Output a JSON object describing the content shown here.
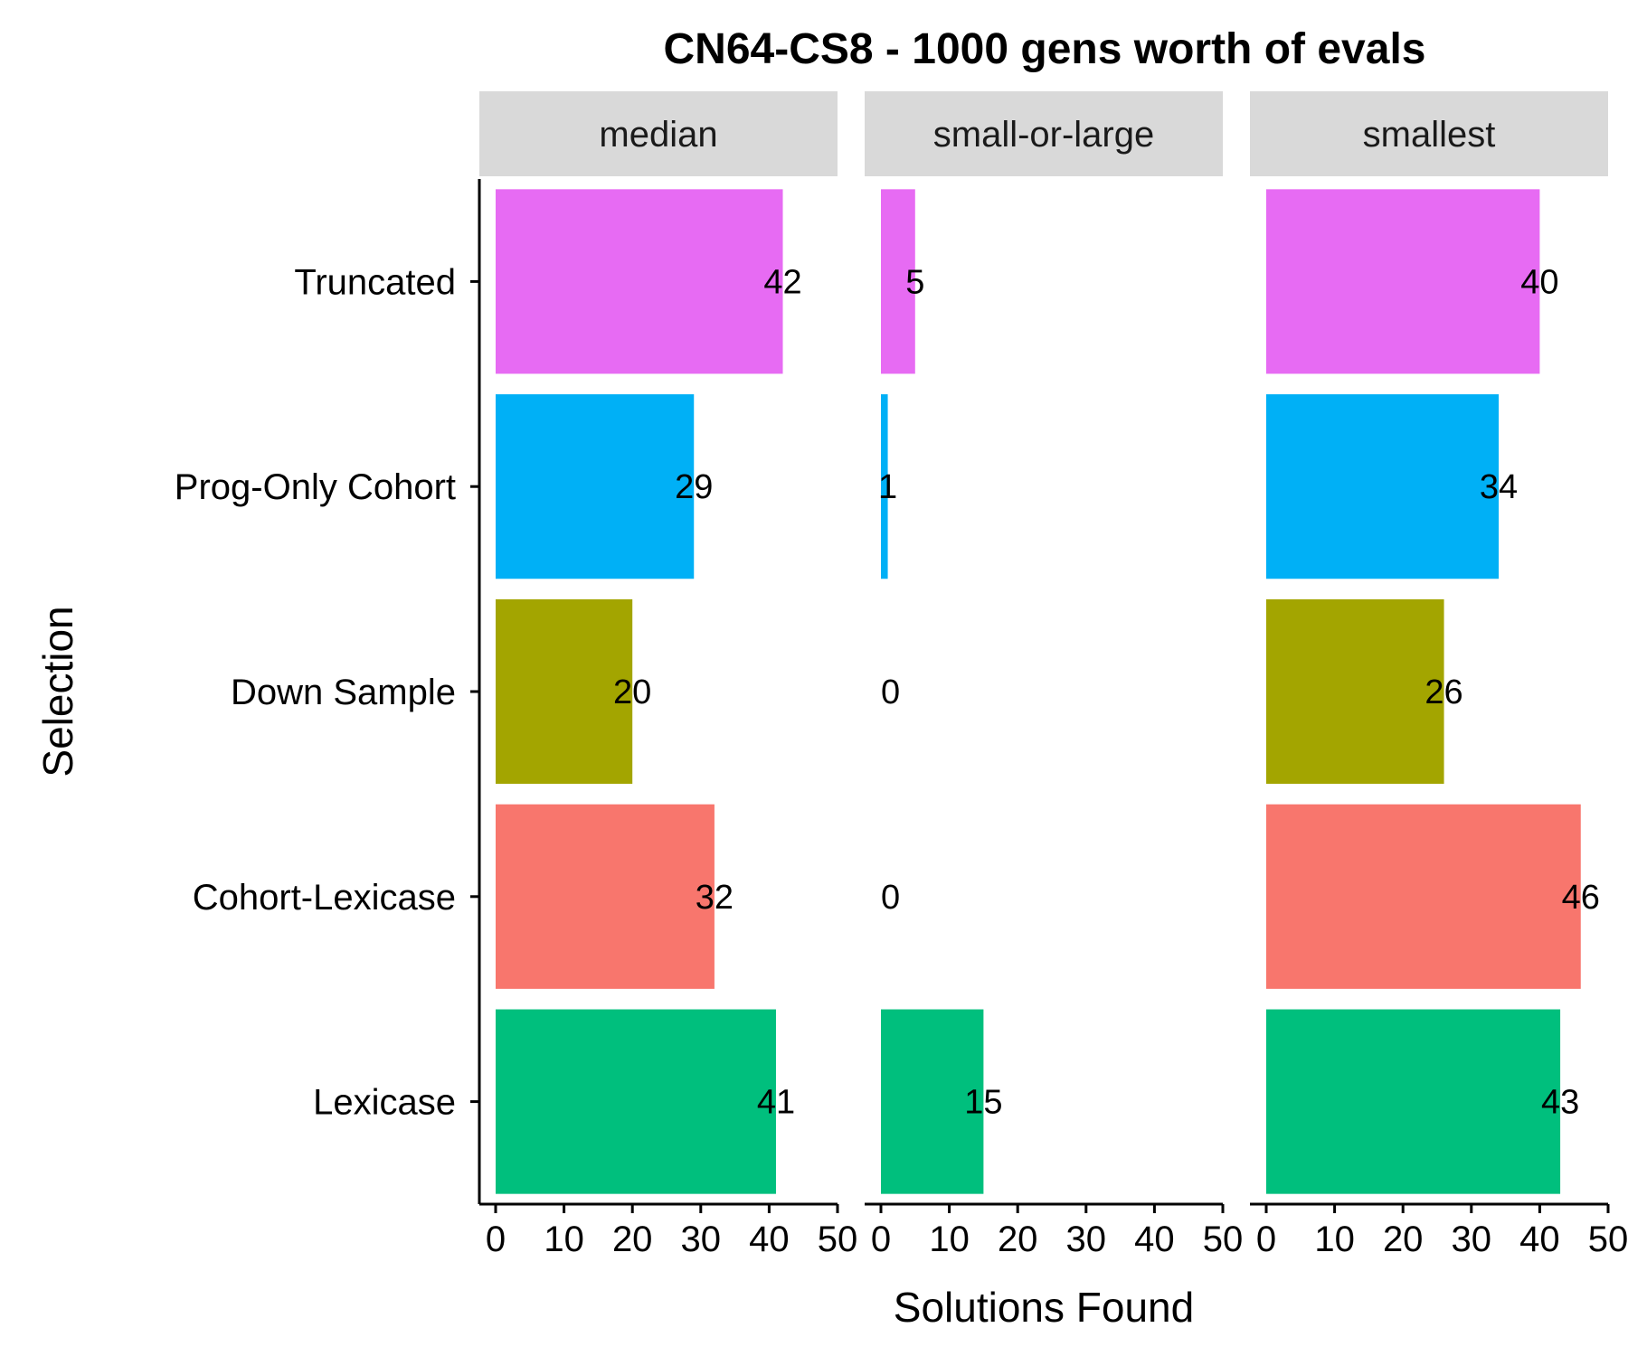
{
  "chart_data": {
    "type": "bar",
    "orientation": "horizontal",
    "title": "CN64-CS8  - 1000 gens worth of evals",
    "xlabel": "Solutions Found",
    "ylabel": "Selection",
    "xlim": [
      0,
      50
    ],
    "x_ticks": [
      0,
      10,
      20,
      30,
      40,
      50
    ],
    "grid": false,
    "legend": "none",
    "categories": [
      "Truncated",
      "Prog-Only Cohort",
      "Down Sample",
      "Cohort-Lexicase",
      "Lexicase"
    ],
    "category_colors": {
      "Truncated": "#E76BF3",
      "Prog-Only Cohort": "#00B0F6",
      "Down Sample": "#A3A500",
      "Cohort-Lexicase": "#F8766D",
      "Lexicase": "#00BF7D"
    },
    "facets": [
      {
        "name": "median",
        "values": [
          42,
          29,
          20,
          32,
          41
        ]
      },
      {
        "name": "small-or-large",
        "values": [
          5,
          1,
          0,
          0,
          15
        ]
      },
      {
        "name": "smallest",
        "values": [
          40,
          34,
          26,
          46,
          43
        ]
      }
    ]
  }
}
